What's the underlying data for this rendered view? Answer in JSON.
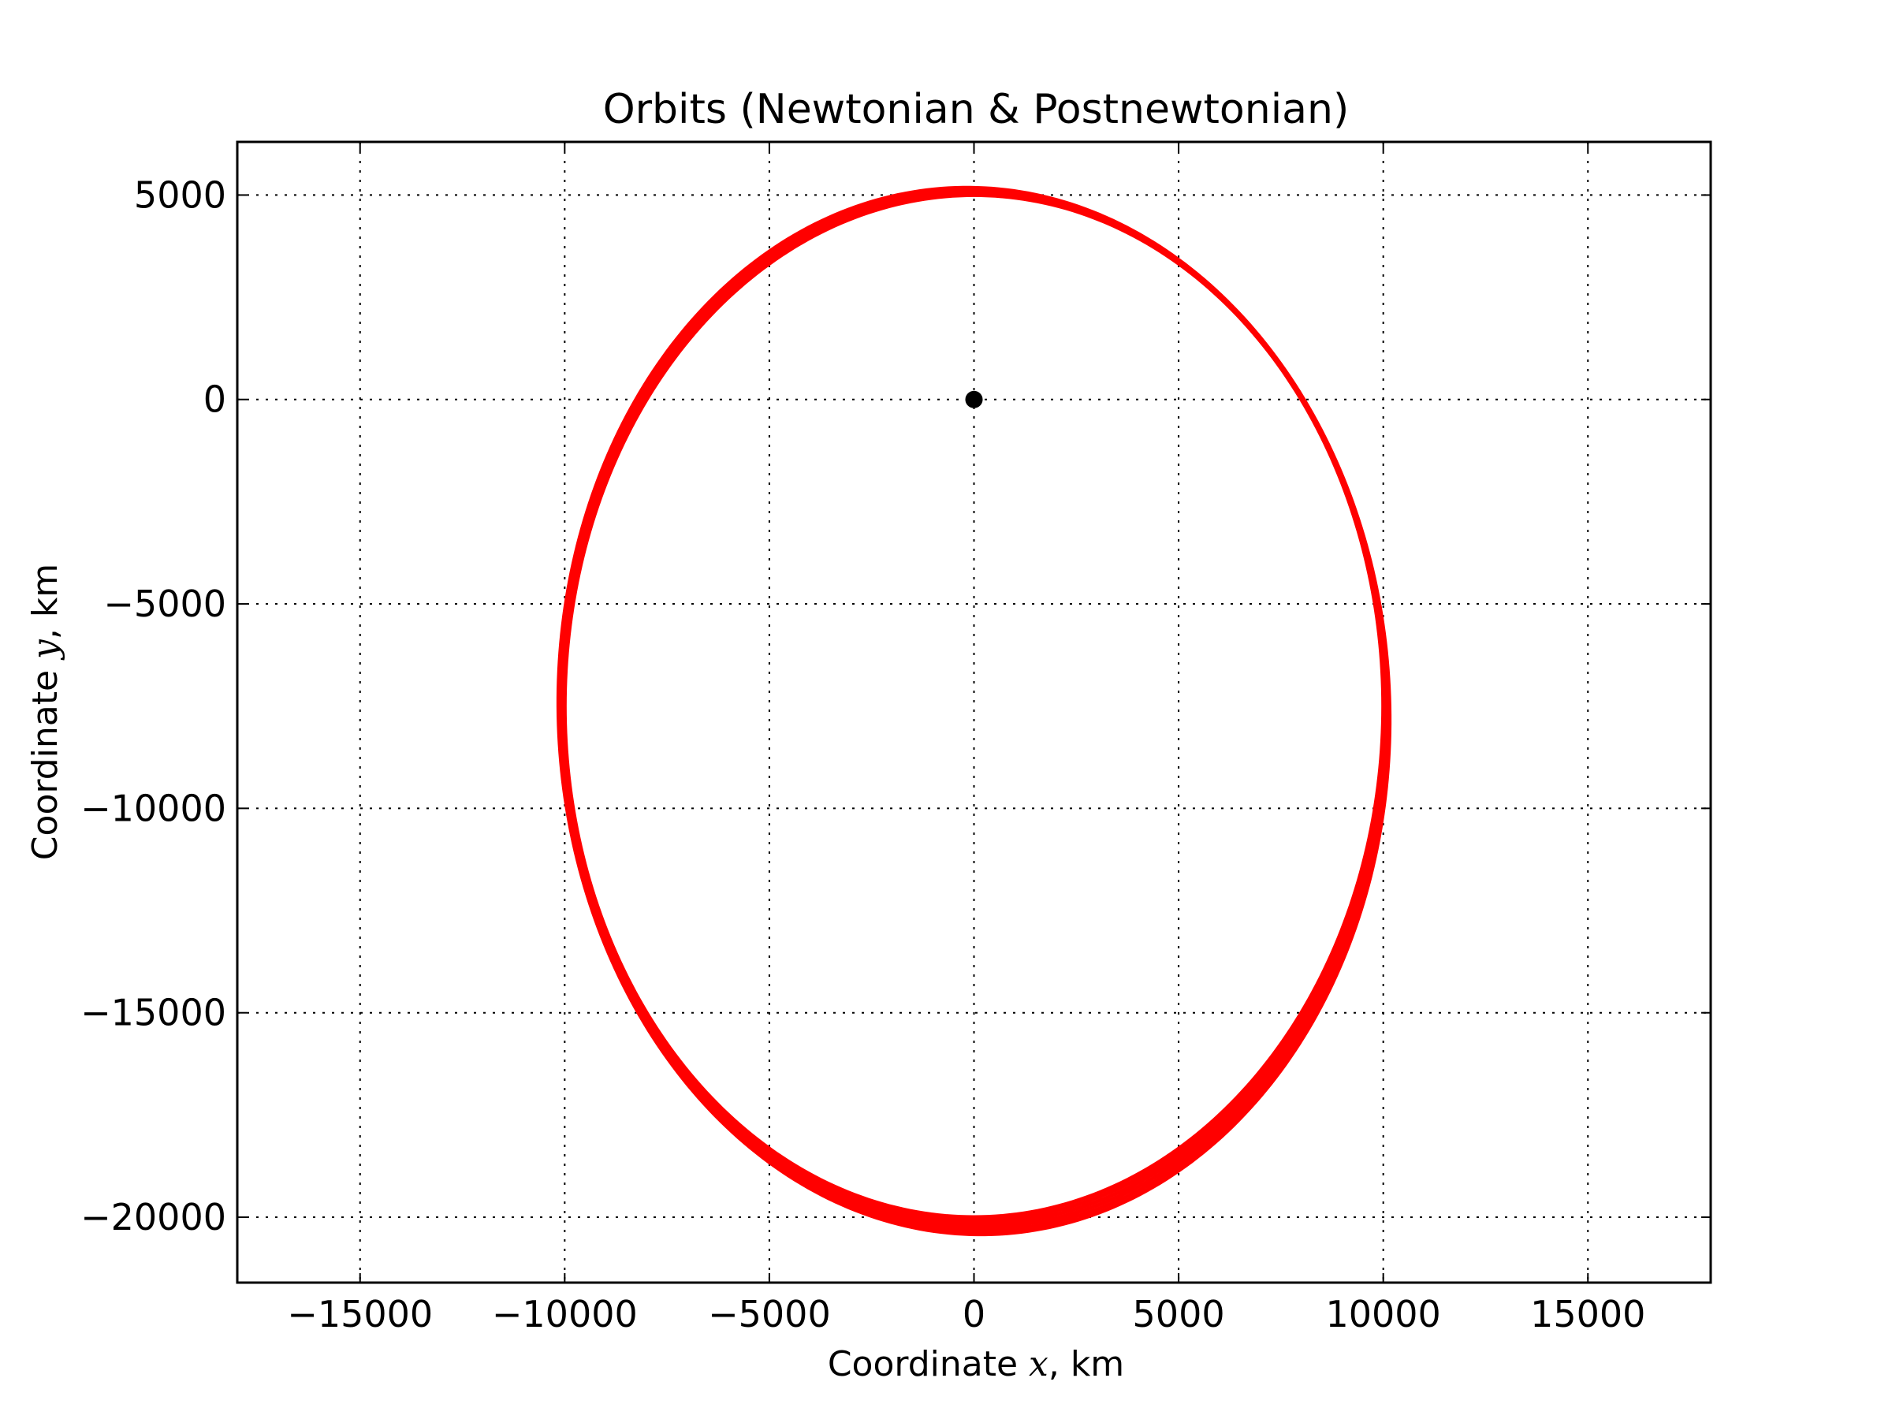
{
  "chart_data": {
    "type": "line",
    "title": "Orbits (Newtonian & Postnewtonian)",
    "xlabel": {
      "prefix": "Coordinate ",
      "var": "x",
      "suffix": ", km"
    },
    "ylabel": {
      "prefix": "Coordinate ",
      "var": "y",
      "suffix": ", km"
    },
    "xlim": [
      -18000,
      18000
    ],
    "ylim": [
      -21600,
      6300
    ],
    "xticks": [
      -15000,
      -10000,
      -5000,
      0,
      5000,
      10000,
      15000
    ],
    "yticks": [
      5000,
      0,
      -5000,
      -10000,
      -15000,
      -20000
    ],
    "grid": true,
    "series": [
      {
        "color": "#000000",
        "shape": "ellipse",
        "center": [
          0,
          -7500
        ],
        "semi_axes": [
          10000,
          12500
        ],
        "rotation_deg": 0,
        "orbits": 1
      },
      {
        "color": "#ff0000",
        "shape": "precessing-ellipse",
        "center": [
          0,
          -7500
        ],
        "semi_axes": [
          10000,
          12500
        ],
        "rotation_deg_start": 0,
        "rotation_deg_end": 2.0,
        "semi_major_growth": 300,
        "orbits": 6
      }
    ],
    "central_body": {
      "x": 0,
      "y": 0,
      "color": "#000000"
    }
  }
}
